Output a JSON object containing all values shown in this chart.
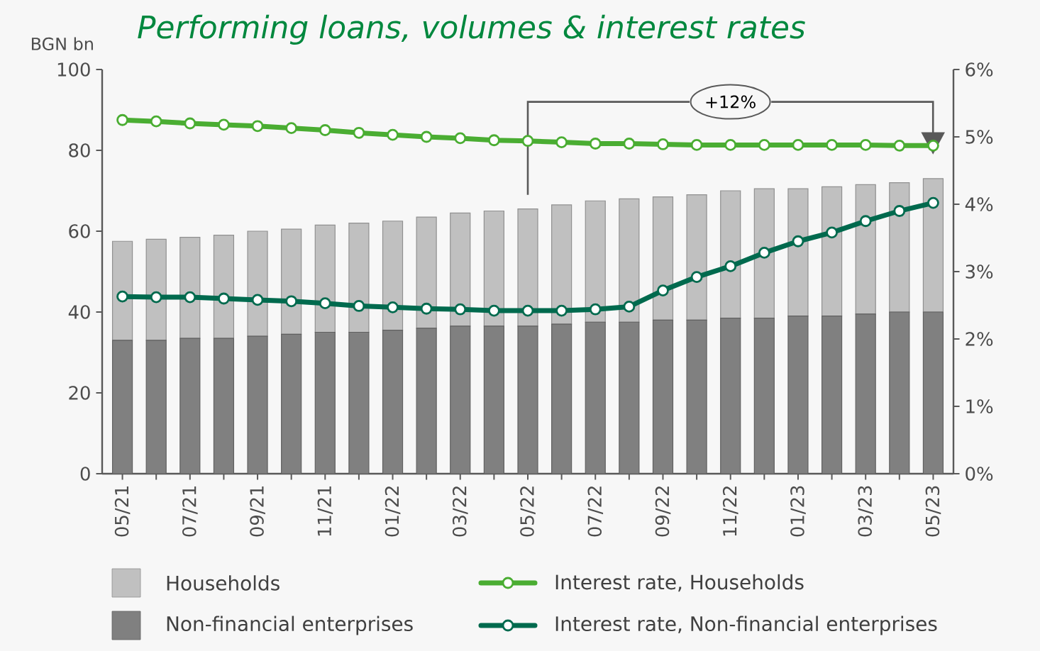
{
  "chart_data": {
    "type": "bar",
    "title": "Performing loans, volumes & interest rates",
    "ylabel": "BGN bn",
    "categories": [
      "05/21",
      null,
      "07/21",
      null,
      "09/21",
      null,
      "11/21",
      null,
      "01/22",
      null,
      "03/22",
      null,
      "05/22",
      null,
      "07/22",
      null,
      "09/22",
      null,
      "11/22",
      null,
      "01/23",
      null,
      "03/23",
      null,
      "05/23"
    ],
    "stacked": true,
    "series": [
      {
        "name": "Non-financial enterprises",
        "color": "#808080",
        "values": [
          33,
          33,
          33.5,
          33.5,
          34,
          34.5,
          35,
          35,
          35.5,
          36,
          36.5,
          36.5,
          36.5,
          37,
          37.5,
          37.5,
          38,
          38,
          38.5,
          38.5,
          39,
          39,
          39.5,
          40,
          40
        ]
      },
      {
        "name": "Households",
        "color": "#c0c0c0",
        "values": [
          24.5,
          25,
          25,
          25.5,
          26,
          26,
          26.5,
          27,
          27,
          27.5,
          28,
          28.5,
          29,
          29.5,
          30,
          30.5,
          30.5,
          31,
          31.5,
          32,
          31.5,
          32,
          32,
          32,
          33
        ]
      },
      {
        "name": "Interest rate, Households",
        "type": "line",
        "axis": "y2",
        "color": "#4aad32",
        "values": [
          5.25,
          5.23,
          5.2,
          5.18,
          5.16,
          5.13,
          5.1,
          5.06,
          5.03,
          5.0,
          4.98,
          4.95,
          4.94,
          4.92,
          4.9,
          4.9,
          4.89,
          4.88,
          4.88,
          4.88,
          4.88,
          4.88,
          4.88,
          4.87,
          4.87
        ]
      },
      {
        "name": "Interest rate, Non-financial enterprises",
        "type": "line",
        "axis": "y2",
        "color": "#006a4e",
        "values": [
          2.63,
          2.62,
          2.62,
          2.6,
          2.58,
          2.56,
          2.53,
          2.49,
          2.47,
          2.45,
          2.44,
          2.42,
          2.42,
          2.42,
          2.44,
          2.48,
          2.72,
          2.92,
          3.08,
          3.28,
          3.45,
          3.58,
          3.75,
          3.9,
          4.02
        ]
      }
    ],
    "ylim": [
      0,
      100
    ],
    "yticks": [
      0,
      20,
      40,
      60,
      80,
      100
    ],
    "y2lim": [
      0,
      6
    ],
    "y2ticks": [
      {
        "value": 0,
        "label": "0%"
      },
      {
        "value": 1,
        "label": "1%"
      },
      {
        "value": 2,
        "label": "2%"
      },
      {
        "value": 3,
        "label": "3%"
      },
      {
        "value": 4,
        "label": "4%"
      },
      {
        "value": 5,
        "label": "5%"
      },
      {
        "value": 6,
        "label": "6%"
      }
    ],
    "annotations": [
      "+12%"
    ],
    "legend": "bottom",
    "marker": "circle"
  }
}
